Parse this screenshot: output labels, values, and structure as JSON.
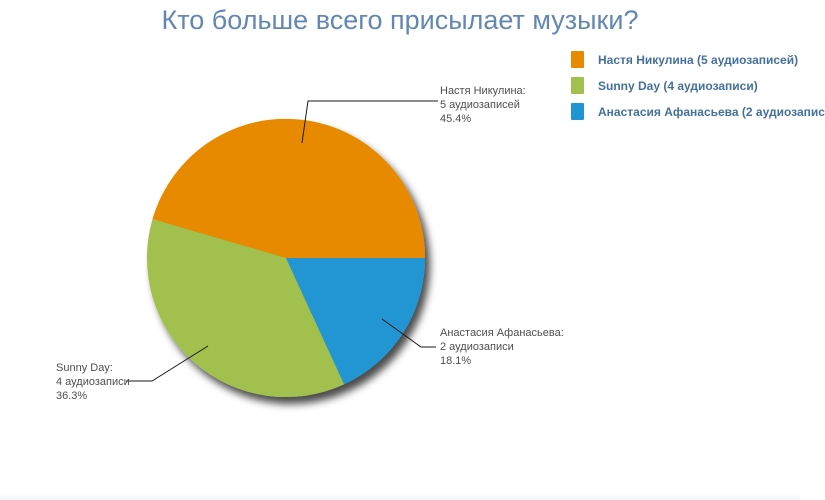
{
  "title": "Кто больше всего присылает музыки?",
  "theme": {
    "title_color": "#6287B3",
    "legend_text_color": "#44719C",
    "callout_text_color": "#4F4F4F",
    "connector_color": "#1A1A1A",
    "background": "#FFFFFF"
  },
  "legend": {
    "items": [
      {
        "label": "Настя Никулина (5 аудиозаписей)",
        "color": "#E78A00"
      },
      {
        "label": "Sunny Day (4 аудиозаписи)",
        "color": "#A2C04D"
      },
      {
        "label": "Анастасия Афанасьева (2 аудиозапис",
        "color": "#2095D3"
      }
    ]
  },
  "chart_data": {
    "type": "pie",
    "title": "Кто больше всего присылает музыки?",
    "legend_position": "top-right",
    "start_angle_deg": 0,
    "direction": "counterclockwise",
    "slices": [
      {
        "name": "Настя Никулина",
        "value": 5,
        "percent": 45.4,
        "color": "#E78A00",
        "callout": [
          "Настя Никулина:",
          "5 аудиозаписей",
          "45.4%"
        ]
      },
      {
        "name": "Sunny Day",
        "value": 4,
        "percent": 36.3,
        "color": "#A2C04D",
        "callout": [
          "Sunny Day:",
          "4 аудиозаписи",
          "36.3%"
        ]
      },
      {
        "name": "Анастасия Афанасьева",
        "value": 2,
        "percent": 18.1,
        "color": "#2095D3",
        "callout": [
          "Анастасия Афанасьева:",
          "2 аудиозаписи",
          "18.1%"
        ]
      }
    ]
  }
}
